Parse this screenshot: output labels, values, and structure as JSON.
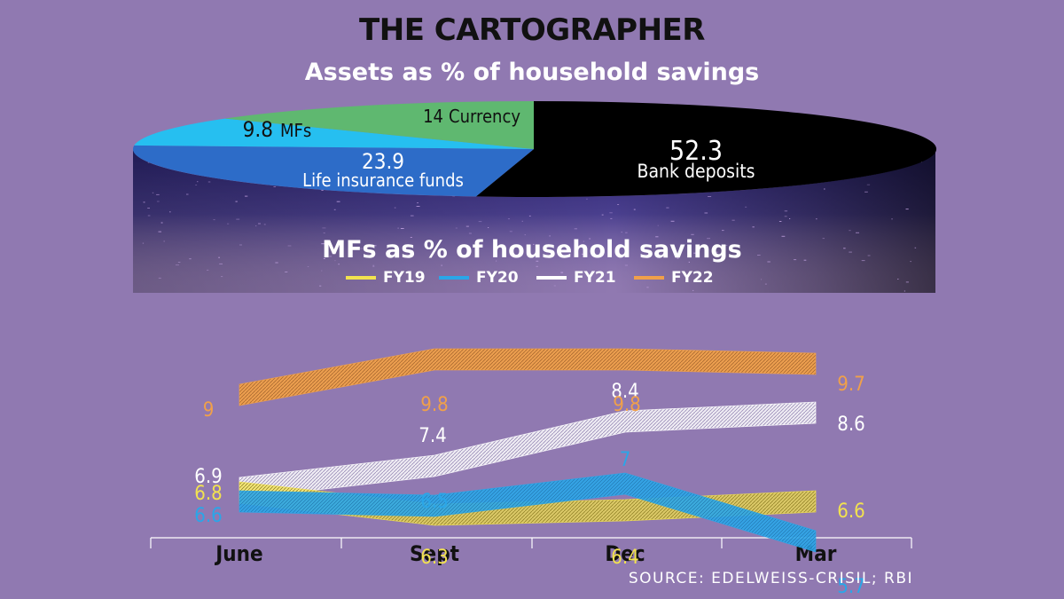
{
  "brand": "THE CARTOGRAPHER",
  "source": "SOURCE: EDELWEISS-CRISIL; RBI",
  "colors": {
    "FY19": "#f2e24f",
    "FY20": "#2aa6e8",
    "FY21": "#ffffff",
    "FY22": "#f0a04a",
    "bank": "#000000",
    "life": "#2d6cc8",
    "mf": "#26bff0",
    "currency": "#5fb870"
  },
  "chart_data": [
    {
      "type": "pie",
      "title": "Assets as % of household savings",
      "slices": [
        {
          "key": "bank",
          "value": 52.3,
          "value_label": "52.3",
          "label": "Bank deposits"
        },
        {
          "key": "life",
          "value": 23.9,
          "value_label": "23.9",
          "label": "Life insurance funds"
        },
        {
          "key": "mf",
          "value": 9.8,
          "value_label": "9.8",
          "label": "MFs"
        },
        {
          "key": "currency",
          "value": 14,
          "value_label": "14",
          "label": "Currency"
        }
      ]
    },
    {
      "type": "line",
      "title": "MFs as % of household savings",
      "categories": [
        "June",
        "Sept",
        "Dec",
        "Mar"
      ],
      "series": [
        {
          "name": "FY19",
          "values": [
            6.8,
            6.3,
            6.4,
            6.6
          ],
          "labels": [
            "6.8",
            "6.3",
            "6.4",
            "6.6"
          ]
        },
        {
          "name": "FY20",
          "values": [
            6.6,
            6.5,
            7.0,
            5.7
          ],
          "labels": [
            "6.6",
            "6.5",
            "7",
            "5.7"
          ]
        },
        {
          "name": "FY21",
          "values": [
            6.9,
            7.4,
            8.4,
            8.6
          ],
          "labels": [
            "6.9",
            "7.4",
            "8.4",
            "8.6"
          ]
        },
        {
          "name": "FY22",
          "values": [
            9.0,
            9.8,
            9.8,
            9.7
          ],
          "labels": [
            "9",
            "9.8",
            "9.8",
            "9.7"
          ]
        }
      ],
      "ylim": [
        5.5,
        10
      ]
    }
  ]
}
